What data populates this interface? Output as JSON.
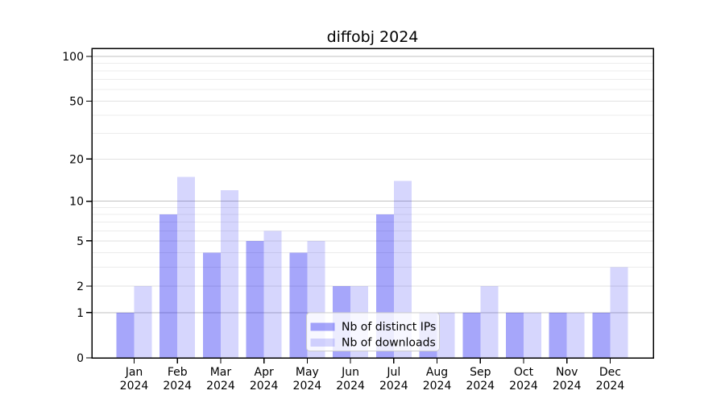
{
  "chart_data": {
    "type": "bar",
    "title": "diffobj 2024",
    "categories": [
      "Jan",
      "Feb",
      "Mar",
      "Apr",
      "May",
      "Jun",
      "Jul",
      "Aug",
      "Sep",
      "Oct",
      "Nov",
      "Dec"
    ],
    "category_year": "2024",
    "series": [
      {
        "name": "Nb of distinct IPs",
        "color": "rgba(0,0,240,0.35)",
        "values": [
          1,
          8,
          4,
          5,
          4,
          2,
          8,
          1,
          1,
          1,
          1,
          1
        ]
      },
      {
        "name": "Nb of downloads",
        "color": "rgba(0,0,240,0.16)",
        "values": [
          2,
          15,
          12,
          6,
          5,
          2,
          14,
          1,
          2,
          1,
          1,
          3
        ]
      }
    ],
    "y_scale": "log1p",
    "y_ticks": [
      0,
      1,
      2,
      5,
      10,
      20,
      50,
      100
    ],
    "y_minor_ticks": [
      3,
      4,
      6,
      7,
      8,
      9,
      30,
      40,
      60,
      70,
      80,
      90
    ],
    "ylim": [
      0,
      112
    ],
    "xlabel": "",
    "ylabel": "",
    "grid": "on",
    "legend_position": "lower center-right inside plot"
  },
  "colors": {
    "power_grid": "#c2c2c2",
    "labeled_grid": "#e2e2e2",
    "minor_grid": "#ececec",
    "spine": "#000000",
    "tick": "#000000",
    "text": "#000000",
    "legend_edge": "#cccccc",
    "legend_bg_rgba": "rgba(255,255,255,0.8)",
    "background": "#ffffff"
  }
}
